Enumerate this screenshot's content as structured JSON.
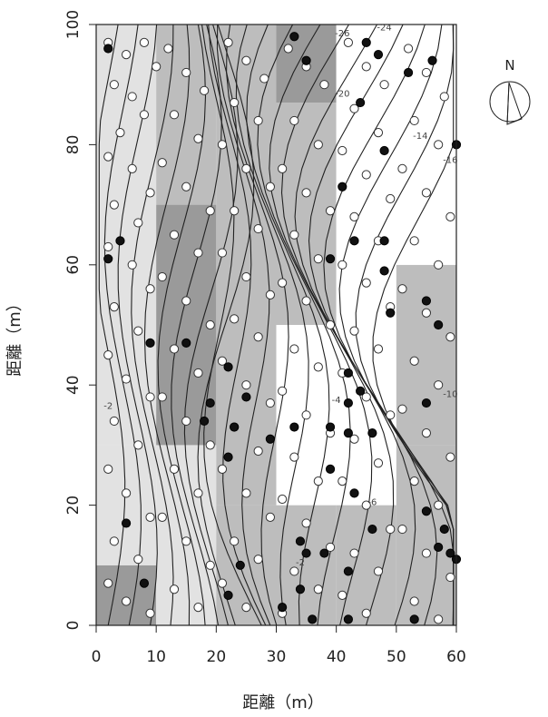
{
  "chart_data": {
    "type": "scatter",
    "title": "",
    "xlabel": "距離（m）",
    "ylabel": "距離（m）",
    "xlim": [
      0,
      60
    ],
    "ylim": [
      0,
      100
    ],
    "x_ticks": [
      "0",
      "10",
      "20",
      "30",
      "40",
      "50",
      "60"
    ],
    "y_ticks": [
      "0",
      "20",
      "40",
      "60",
      "80",
      "100"
    ],
    "grid": false,
    "north_label": "N",
    "colors": {
      "open_point": "#ffffff",
      "filled_point": "#111111",
      "shade_light": "#e2e2e2",
      "shade_mid": "#bdbdbd",
      "shade_dark": "#9a9a9a",
      "contour": "#222222"
    },
    "shading_blocks": [
      {
        "x": [
          0,
          10
        ],
        "y": [
          0,
          10
        ],
        "level": "dark"
      },
      {
        "x": [
          0,
          10
        ],
        "y": [
          10,
          30
        ],
        "level": "light"
      },
      {
        "x": [
          0,
          10
        ],
        "y": [
          30,
          100
        ],
        "level": "light"
      },
      {
        "x": [
          10,
          20
        ],
        "y": [
          0,
          30
        ],
        "level": "light"
      },
      {
        "x": [
          10,
          20
        ],
        "y": [
          30,
          70
        ],
        "level": "dark"
      },
      {
        "x": [
          10,
          20
        ],
        "y": [
          70,
          100
        ],
        "level": "mid"
      },
      {
        "x": [
          20,
          30
        ],
        "y": [
          0,
          20
        ],
        "level": "mid"
      },
      {
        "x": [
          20,
          30
        ],
        "y": [
          20,
          50
        ],
        "level": "mid"
      },
      {
        "x": [
          20,
          30
        ],
        "y": [
          50,
          100
        ],
        "level": "mid"
      },
      {
        "x": [
          30,
          40
        ],
        "y": [
          0,
          20
        ],
        "level": "mid"
      },
      {
        "x": [
          30,
          40
        ],
        "y": [
          20,
          50
        ],
        "level": "white"
      },
      {
        "x": [
          30,
          40
        ],
        "y": [
          50,
          87
        ],
        "level": "mid"
      },
      {
        "x": [
          30,
          40
        ],
        "y": [
          87,
          100
        ],
        "level": "dark"
      },
      {
        "x": [
          40,
          50
        ],
        "y": [
          0,
          20
        ],
        "level": "mid"
      },
      {
        "x": [
          40,
          50
        ],
        "y": [
          20,
          60
        ],
        "level": "white"
      },
      {
        "x": [
          40,
          50
        ],
        "y": [
          60,
          100
        ],
        "level": "white"
      },
      {
        "x": [
          50,
          60
        ],
        "y": [
          0,
          30
        ],
        "level": "mid"
      },
      {
        "x": [
          50,
          60
        ],
        "y": [
          30,
          60
        ],
        "level": "mid"
      },
      {
        "x": [
          50,
          60
        ],
        "y": [
          60,
          100
        ],
        "level": "white"
      }
    ],
    "contour_labels": [
      {
        "text": "-26",
        "x": 41,
        "y": 98
      },
      {
        "text": "-24",
        "x": 48,
        "y": 99
      },
      {
        "text": "-20",
        "x": 41,
        "y": 88
      },
      {
        "text": "-14",
        "x": 54,
        "y": 81
      },
      {
        "text": "-16",
        "x": 59,
        "y": 77
      },
      {
        "text": "-4",
        "x": 40,
        "y": 37
      },
      {
        "text": "-10",
        "x": 59,
        "y": 38
      },
      {
        "text": "-6",
        "x": 46,
        "y": 20
      },
      {
        "text": "-2",
        "x": 2,
        "y": 36
      },
      {
        "text": "-2",
        "x": 34,
        "y": 10
      }
    ],
    "open_points": [
      [
        2,
        97
      ],
      [
        5,
        95
      ],
      [
        8,
        97
      ],
      [
        10,
        93
      ],
      [
        3,
        90
      ],
      [
        6,
        88
      ],
      [
        8,
        85
      ],
      [
        4,
        82
      ],
      [
        2,
        78
      ],
      [
        6,
        76
      ],
      [
        9,
        72
      ],
      [
        3,
        70
      ],
      [
        7,
        67
      ],
      [
        2,
        63
      ],
      [
        6,
        60
      ],
      [
        9,
        56
      ],
      [
        3,
        53
      ],
      [
        7,
        49
      ],
      [
        2,
        45
      ],
      [
        5,
        41
      ],
      [
        9,
        38
      ],
      [
        3,
        34
      ],
      [
        7,
        30
      ],
      [
        2,
        26
      ],
      [
        5,
        22
      ],
      [
        9,
        18
      ],
      [
        3,
        14
      ],
      [
        7,
        11
      ],
      [
        2,
        7
      ],
      [
        5,
        4
      ],
      [
        9,
        2
      ],
      [
        12,
        96
      ],
      [
        15,
        92
      ],
      [
        18,
        89
      ],
      [
        13,
        85
      ],
      [
        17,
        81
      ],
      [
        11,
        77
      ],
      [
        15,
        73
      ],
      [
        19,
        69
      ],
      [
        13,
        65
      ],
      [
        17,
        62
      ],
      [
        11,
        58
      ],
      [
        15,
        54
      ],
      [
        19,
        50
      ],
      [
        13,
        46
      ],
      [
        17,
        42
      ],
      [
        11,
        38
      ],
      [
        15,
        34
      ],
      [
        19,
        30
      ],
      [
        13,
        26
      ],
      [
        17,
        22
      ],
      [
        11,
        18
      ],
      [
        15,
        14
      ],
      [
        19,
        10
      ],
      [
        13,
        6
      ],
      [
        17,
        3
      ],
      [
        22,
        97
      ],
      [
        25,
        94
      ],
      [
        28,
        91
      ],
      [
        23,
        87
      ],
      [
        27,
        84
      ],
      [
        21,
        80
      ],
      [
        25,
        76
      ],
      [
        29,
        73
      ],
      [
        23,
        69
      ],
      [
        27,
        66
      ],
      [
        21,
        62
      ],
      [
        25,
        58
      ],
      [
        29,
        55
      ],
      [
        23,
        51
      ],
      [
        27,
        48
      ],
      [
        21,
        44
      ],
      [
        25,
        40
      ],
      [
        29,
        37
      ],
      [
        23,
        33
      ],
      [
        27,
        29
      ],
      [
        21,
        26
      ],
      [
        25,
        22
      ],
      [
        29,
        18
      ],
      [
        23,
        14
      ],
      [
        27,
        11
      ],
      [
        21,
        7
      ],
      [
        25,
        3
      ],
      [
        32,
        96
      ],
      [
        35,
        93
      ],
      [
        38,
        90
      ],
      [
        33,
        84
      ],
      [
        37,
        80
      ],
      [
        31,
        76
      ],
      [
        35,
        72
      ],
      [
        39,
        69
      ],
      [
        33,
        65
      ],
      [
        37,
        61
      ],
      [
        31,
        57
      ],
      [
        35,
        54
      ],
      [
        39,
        50
      ],
      [
        33,
        46
      ],
      [
        37,
        43
      ],
      [
        31,
        39
      ],
      [
        35,
        35
      ],
      [
        39,
        32
      ],
      [
        33,
        28
      ],
      [
        37,
        24
      ],
      [
        31,
        21
      ],
      [
        35,
        17
      ],
      [
        39,
        13
      ],
      [
        33,
        9
      ],
      [
        37,
        6
      ],
      [
        31,
        2
      ],
      [
        42,
        97
      ],
      [
        45,
        93
      ],
      [
        48,
        90
      ],
      [
        43,
        86
      ],
      [
        47,
        82
      ],
      [
        41,
        79
      ],
      [
        45,
        75
      ],
      [
        49,
        71
      ],
      [
        43,
        68
      ],
      [
        47,
        64
      ],
      [
        41,
        60
      ],
      [
        45,
        57
      ],
      [
        49,
        53
      ],
      [
        43,
        49
      ],
      [
        47,
        46
      ],
      [
        41,
        42
      ],
      [
        45,
        38
      ],
      [
        49,
        35
      ],
      [
        43,
        31
      ],
      [
        47,
        27
      ],
      [
        41,
        24
      ],
      [
        45,
        20
      ],
      [
        49,
        16
      ],
      [
        43,
        12
      ],
      [
        47,
        9
      ],
      [
        41,
        5
      ],
      [
        45,
        2
      ],
      [
        52,
        96
      ],
      [
        55,
        92
      ],
      [
        58,
        88
      ],
      [
        53,
        84
      ],
      [
        57,
        80
      ],
      [
        51,
        76
      ],
      [
        55,
        72
      ],
      [
        59,
        68
      ],
      [
        53,
        64
      ],
      [
        57,
        60
      ],
      [
        51,
        56
      ],
      [
        55,
        52
      ],
      [
        59,
        48
      ],
      [
        53,
        44
      ],
      [
        57,
        40
      ],
      [
        51,
        36
      ],
      [
        55,
        32
      ],
      [
        59,
        28
      ],
      [
        53,
        24
      ],
      [
        57,
        20
      ],
      [
        51,
        16
      ],
      [
        55,
        12
      ],
      [
        59,
        8
      ],
      [
        53,
        4
      ],
      [
        57,
        1
      ]
    ],
    "filled_points": [
      [
        2,
        96
      ],
      [
        33,
        98
      ],
      [
        35,
        94
      ],
      [
        45,
        97
      ],
      [
        47,
        95
      ],
      [
        52,
        92
      ],
      [
        56,
        94
      ],
      [
        44,
        87
      ],
      [
        48,
        79
      ],
      [
        60,
        80
      ],
      [
        41,
        73
      ],
      [
        43,
        64
      ],
      [
        48,
        64
      ],
      [
        39,
        61
      ],
      [
        2,
        61
      ],
      [
        4,
        64
      ],
      [
        48,
        59
      ],
      [
        49,
        52
      ],
      [
        55,
        54
      ],
      [
        57,
        50
      ],
      [
        9,
        47
      ],
      [
        15,
        47
      ],
      [
        22,
        43
      ],
      [
        42,
        42
      ],
      [
        44,
        39
      ],
      [
        42,
        37
      ],
      [
        55,
        37
      ],
      [
        39,
        33
      ],
      [
        33,
        33
      ],
      [
        19,
        37
      ],
      [
        18,
        34
      ],
      [
        25,
        38
      ],
      [
        23,
        33
      ],
      [
        22,
        28
      ],
      [
        29,
        31
      ],
      [
        42,
        32
      ],
      [
        46,
        32
      ],
      [
        39,
        26
      ],
      [
        43,
        22
      ],
      [
        46,
        16
      ],
      [
        5,
        17
      ],
      [
        8,
        7
      ],
      [
        22,
        5
      ],
      [
        24,
        10
      ],
      [
        31,
        3
      ],
      [
        34,
        6
      ],
      [
        35,
        12
      ],
      [
        38,
        12
      ],
      [
        34,
        14
      ],
      [
        42,
        9
      ],
      [
        42,
        1
      ],
      [
        53,
        1
      ],
      [
        57,
        13
      ],
      [
        59,
        12
      ],
      [
        58,
        16
      ],
      [
        60,
        11
      ],
      [
        55,
        19
      ],
      [
        36,
        1
      ]
    ]
  }
}
